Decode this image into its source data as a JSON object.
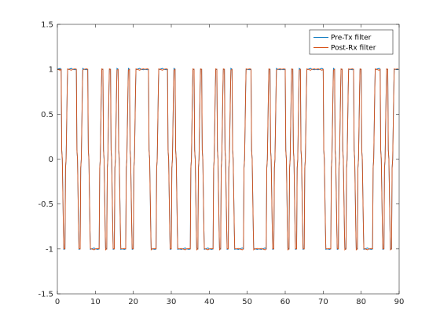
{
  "colors": {
    "axes": "#262626",
    "background": "#ffffff",
    "series_0": "#0072BD",
    "series_1": "#D95319"
  },
  "chart_data": {
    "type": "line",
    "title": "",
    "xlabel": "",
    "ylabel": "",
    "xlim": [
      0,
      90
    ],
    "ylim": [
      -1.5,
      1.5
    ],
    "xticks": [
      "0",
      "10",
      "20",
      "30",
      "40",
      "50",
      "60",
      "70",
      "80",
      "90"
    ],
    "yticks": [
      "-1.5",
      "-1",
      "-0.5",
      "0",
      "0.5",
      "1",
      "1.5"
    ],
    "grid": false,
    "legend_position": "top-right",
    "x_step": 1,
    "symbol_values": [
      1,
      -1,
      1,
      1,
      1,
      -1,
      1,
      1,
      -1,
      -1,
      -1,
      1,
      -1,
      1,
      -1,
      1,
      -1,
      -1,
      1,
      -1,
      1,
      1,
      1,
      1,
      -1,
      -1,
      1,
      1,
      1,
      -1,
      1,
      -1,
      -1,
      -1,
      -1,
      1,
      -1,
      1,
      -1,
      -1,
      -1,
      1,
      -1,
      1,
      -1,
      1,
      -1,
      -1,
      -1,
      1,
      1,
      -1,
      -1,
      -1,
      -1,
      1,
      -1,
      1,
      1,
      1,
      -1,
      1,
      -1,
      1,
      -1,
      1,
      1,
      1,
      1,
      1,
      -1,
      -1,
      1,
      -1,
      1,
      -1,
      1,
      1,
      -1,
      1,
      -1,
      -1,
      -1,
      1,
      1,
      -1,
      1,
      -1,
      1,
      1
    ],
    "series": [
      {
        "name": "Pre-Tx filter",
        "color": "#0072BD",
        "description_values": "symbol_values"
      },
      {
        "name": "Post-Rx filter",
        "color": "#D95319",
        "description_values": "symbol_values"
      }
    ]
  }
}
